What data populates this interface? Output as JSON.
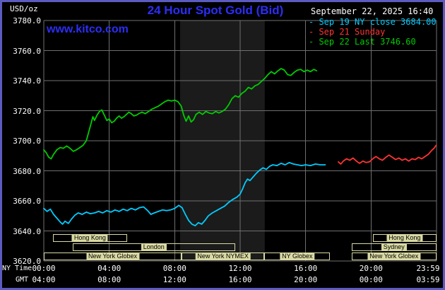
{
  "header": {
    "unit_label": "USD/oz",
    "title": "24 Hour Spot Gold (Bid)",
    "watermark": "www.kitco.com",
    "datetime": "September 22, 2025 16:40"
  },
  "legend": [
    {
      "label": "Sep 19 NY close 3684.00",
      "color": "#00ccff"
    },
    {
      "label": "Sep 21 Sunday",
      "color": "#ff3333"
    },
    {
      "label": "Sep 22 Last 3746.60",
      "color": "#00cc00"
    }
  ],
  "axes": {
    "x_ny_label": "NY Time",
    "x_gmt_label": "GMT",
    "x_ny_ticks": [
      "00:00",
      "04:00",
      "08:00",
      "12:00",
      "16:00",
      "20:00",
      "23:59"
    ],
    "x_gmt_ticks": [
      "04:00",
      "08:00",
      "12:00",
      "16:00",
      "20:00",
      "00:00",
      "03:59"
    ],
    "y_ticks": [
      {
        "value": 3780,
        "label": "3780.0"
      },
      {
        "value": 3760,
        "label": "3760.0"
      },
      {
        "value": 3740,
        "label": "3740.0"
      },
      {
        "value": 3720,
        "label": "3720.0"
      },
      {
        "value": 3700,
        "label": "3700.0"
      },
      {
        "value": 3680,
        "label": "3680.0"
      },
      {
        "value": 3660,
        "label": "3660.0"
      },
      {
        "value": 3640,
        "label": "3640.0"
      },
      {
        "value": 3620,
        "label": "3620.0"
      }
    ]
  },
  "sessions": [
    {
      "row": 0,
      "label": "Hong Kong",
      "start": 0.55,
      "end": 5.1
    },
    {
      "row": 0,
      "label": "Hong Kong",
      "start": 20.1,
      "end": 24
    },
    {
      "row": 1,
      "label": "London",
      "start": 1.75,
      "end": 11.7
    },
    {
      "row": 1,
      "label": "Sydney",
      "start": 18.8,
      "end": 24
    },
    {
      "row": 2,
      "label": "New York Globex",
      "start": 0,
      "end": 8.42
    },
    {
      "row": 2,
      "label": "New York NYMEX",
      "start": 8.42,
      "end": 13.47
    },
    {
      "row": 2,
      "label": "NY Globex",
      "start": 13.47,
      "end": 17.5
    },
    {
      "row": 2,
      "label": "New York Globex",
      "start": 18.8,
      "end": 24
    }
  ],
  "colors": {
    "background": "#000000",
    "border": "#5b5bc0",
    "grid": "#6f6f6f",
    "band": "#1b1b1b",
    "title_blue": "#2d2df5",
    "session": "#d9d9a3",
    "text": "#ffffff"
  },
  "chart_data": {
    "type": "line",
    "title": "24 Hour Spot Gold (Bid)",
    "xlabel": "NY Time",
    "ylabel": "USD/oz",
    "x_axis": {
      "label": "NY Time",
      "range_hours": [
        0,
        24
      ],
      "tick_hours": [
        0,
        4,
        8,
        12,
        16,
        20,
        24
      ]
    },
    "y_axis": {
      "label": "USD/oz",
      "range": [
        3620,
        3780
      ],
      "tick_step": 20
    },
    "shaded_band_hours": [
      8.33,
      13.5
    ],
    "legend_position": "top-right",
    "grid": true,
    "series": [
      {
        "name": "Sep 19 NY close 3684.00",
        "color": "#00ccff",
        "points": [
          [
            0.0,
            3655
          ],
          [
            0.2,
            3653
          ],
          [
            0.4,
            3654.5
          ],
          [
            0.6,
            3651
          ],
          [
            0.8,
            3648.5
          ],
          [
            1.0,
            3646
          ],
          [
            1.15,
            3644.5
          ],
          [
            1.3,
            3646.5
          ],
          [
            1.5,
            3645
          ],
          [
            1.7,
            3648
          ],
          [
            1.9,
            3650.5
          ],
          [
            2.1,
            3652
          ],
          [
            2.35,
            3651
          ],
          [
            2.6,
            3652.5
          ],
          [
            2.85,
            3651.5
          ],
          [
            3.1,
            3652
          ],
          [
            3.35,
            3653
          ],
          [
            3.6,
            3652
          ],
          [
            3.85,
            3653.5
          ],
          [
            4.1,
            3652.5
          ],
          [
            4.35,
            3654
          ],
          [
            4.6,
            3653
          ],
          [
            4.85,
            3654.5
          ],
          [
            5.1,
            3653.5
          ],
          [
            5.35,
            3655
          ],
          [
            5.6,
            3654
          ],
          [
            5.85,
            3655.5
          ],
          [
            6.1,
            3656
          ],
          [
            6.35,
            3653.5
          ],
          [
            6.55,
            3651
          ],
          [
            6.75,
            3652
          ],
          [
            7.0,
            3653
          ],
          [
            7.25,
            3654
          ],
          [
            7.5,
            3653.5
          ],
          [
            7.75,
            3654
          ],
          [
            8.0,
            3655
          ],
          [
            8.25,
            3657
          ],
          [
            8.45,
            3655.5
          ],
          [
            8.65,
            3651
          ],
          [
            8.85,
            3647
          ],
          [
            9.05,
            3644.5
          ],
          [
            9.25,
            3643.5
          ],
          [
            9.45,
            3645.5
          ],
          [
            9.65,
            3644.5
          ],
          [
            9.85,
            3647
          ],
          [
            10.05,
            3650
          ],
          [
            10.3,
            3652
          ],
          [
            10.55,
            3653.5
          ],
          [
            10.8,
            3655
          ],
          [
            11.05,
            3656.5
          ],
          [
            11.3,
            3659
          ],
          [
            11.55,
            3661
          ],
          [
            11.8,
            3662.5
          ],
          [
            12.0,
            3664.5
          ],
          [
            12.15,
            3668
          ],
          [
            12.3,
            3672
          ],
          [
            12.45,
            3674.5
          ],
          [
            12.6,
            3673.5
          ],
          [
            12.8,
            3676
          ],
          [
            13.0,
            3678.5
          ],
          [
            13.2,
            3680.5
          ],
          [
            13.4,
            3682
          ],
          [
            13.6,
            3681
          ],
          [
            13.8,
            3683
          ],
          [
            14.0,
            3684
          ],
          [
            14.25,
            3683.5
          ],
          [
            14.5,
            3685
          ],
          [
            14.75,
            3684
          ],
          [
            15.0,
            3685.5
          ],
          [
            15.25,
            3684.5
          ],
          [
            15.5,
            3684
          ],
          [
            15.75,
            3683.5
          ],
          [
            16.0,
            3684
          ],
          [
            16.3,
            3683.5
          ],
          [
            16.6,
            3684.5
          ],
          [
            16.9,
            3684
          ],
          [
            17.2,
            3684
          ]
        ]
      },
      {
        "name": "Sep 21 Sunday",
        "color": "#ff3333",
        "points": [
          [
            18.0,
            3686
          ],
          [
            18.15,
            3684.5
          ],
          [
            18.3,
            3686.5
          ],
          [
            18.5,
            3688
          ],
          [
            18.7,
            3687
          ],
          [
            18.9,
            3688.5
          ],
          [
            19.1,
            3686.5
          ],
          [
            19.3,
            3685
          ],
          [
            19.5,
            3686.5
          ],
          [
            19.7,
            3685.5
          ],
          [
            19.9,
            3686
          ],
          [
            20.1,
            3688
          ],
          [
            20.3,
            3689.5
          ],
          [
            20.5,
            3688
          ],
          [
            20.7,
            3687
          ],
          [
            20.9,
            3689
          ],
          [
            21.1,
            3690.5
          ],
          [
            21.3,
            3689
          ],
          [
            21.5,
            3687.5
          ],
          [
            21.7,
            3688.5
          ],
          [
            21.9,
            3687
          ],
          [
            22.1,
            3688
          ],
          [
            22.3,
            3686.5
          ],
          [
            22.5,
            3688
          ],
          [
            22.7,
            3687.5
          ],
          [
            22.9,
            3689
          ],
          [
            23.1,
            3688
          ],
          [
            23.3,
            3689.5
          ],
          [
            23.5,
            3691
          ],
          [
            23.7,
            3693.5
          ],
          [
            23.85,
            3695
          ],
          [
            23.98,
            3697
          ]
        ]
      },
      {
        "name": "Sep 22 Last 3746.60",
        "color": "#00cc00",
        "points": [
          [
            0.0,
            3694
          ],
          [
            0.15,
            3692
          ],
          [
            0.3,
            3689
          ],
          [
            0.45,
            3688
          ],
          [
            0.6,
            3691
          ],
          [
            0.8,
            3694
          ],
          [
            1.0,
            3695.5
          ],
          [
            1.2,
            3695
          ],
          [
            1.4,
            3696.5
          ],
          [
            1.6,
            3695
          ],
          [
            1.8,
            3693
          ],
          [
            2.0,
            3694
          ],
          [
            2.2,
            3695.5
          ],
          [
            2.4,
            3697
          ],
          [
            2.6,
            3700
          ],
          [
            2.75,
            3706
          ],
          [
            2.9,
            3712
          ],
          [
            3.0,
            3716
          ],
          [
            3.1,
            3713.5
          ],
          [
            3.25,
            3717
          ],
          [
            3.4,
            3719.5
          ],
          [
            3.55,
            3720.5
          ],
          [
            3.7,
            3717
          ],
          [
            3.85,
            3713.5
          ],
          [
            4.0,
            3714.5
          ],
          [
            4.15,
            3712
          ],
          [
            4.3,
            3713
          ],
          [
            4.45,
            3715
          ],
          [
            4.6,
            3716.5
          ],
          [
            4.75,
            3715
          ],
          [
            4.9,
            3716
          ],
          [
            5.05,
            3717.5
          ],
          [
            5.2,
            3719
          ],
          [
            5.35,
            3718
          ],
          [
            5.5,
            3716.5
          ],
          [
            5.65,
            3717
          ],
          [
            5.8,
            3718
          ],
          [
            6.0,
            3719
          ],
          [
            6.2,
            3718
          ],
          [
            6.4,
            3719.5
          ],
          [
            6.6,
            3721
          ],
          [
            6.8,
            3722
          ],
          [
            7.0,
            3723
          ],
          [
            7.2,
            3724.5
          ],
          [
            7.4,
            3726
          ],
          [
            7.6,
            3727
          ],
          [
            7.8,
            3726.5
          ],
          [
            8.0,
            3727
          ],
          [
            8.2,
            3726
          ],
          [
            8.4,
            3723
          ],
          [
            8.55,
            3717
          ],
          [
            8.7,
            3713
          ],
          [
            8.85,
            3716.5
          ],
          [
            9.0,
            3712.5
          ],
          [
            9.15,
            3714
          ],
          [
            9.3,
            3717.5
          ],
          [
            9.5,
            3719
          ],
          [
            9.7,
            3717.5
          ],
          [
            9.9,
            3719.5
          ],
          [
            10.1,
            3718.5
          ],
          [
            10.3,
            3718
          ],
          [
            10.5,
            3719.5
          ],
          [
            10.7,
            3718.5
          ],
          [
            10.9,
            3719.5
          ],
          [
            11.1,
            3721
          ],
          [
            11.3,
            3724
          ],
          [
            11.5,
            3728
          ],
          [
            11.7,
            3730
          ],
          [
            11.9,
            3729
          ],
          [
            12.1,
            3731.5
          ],
          [
            12.3,
            3733
          ],
          [
            12.5,
            3735.5
          ],
          [
            12.7,
            3734.5
          ],
          [
            12.9,
            3736.5
          ],
          [
            13.1,
            3737.5
          ],
          [
            13.3,
            3739.5
          ],
          [
            13.5,
            3741.5
          ],
          [
            13.7,
            3744
          ],
          [
            13.9,
            3746
          ],
          [
            14.1,
            3744.5
          ],
          [
            14.3,
            3746.5
          ],
          [
            14.5,
            3748
          ],
          [
            14.7,
            3747
          ],
          [
            14.9,
            3744
          ],
          [
            15.1,
            3743.5
          ],
          [
            15.3,
            3745.5
          ],
          [
            15.5,
            3747
          ],
          [
            15.7,
            3747.5
          ],
          [
            15.9,
            3746
          ],
          [
            16.1,
            3747
          ],
          [
            16.3,
            3746
          ],
          [
            16.5,
            3747.5
          ],
          [
            16.67,
            3746.6
          ]
        ]
      }
    ]
  }
}
